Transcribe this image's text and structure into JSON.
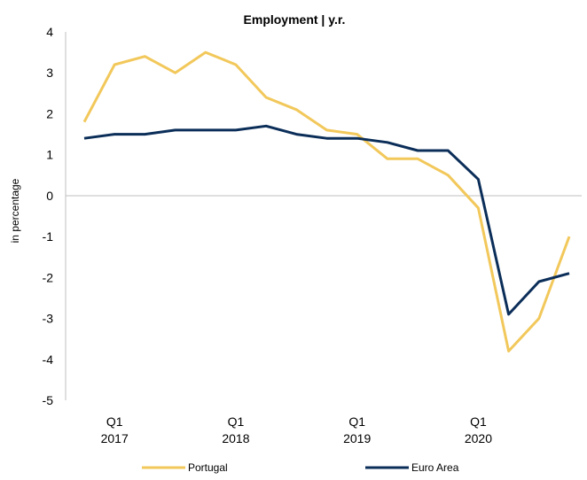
{
  "chart_data": {
    "type": "line",
    "title": "Employment | y.r.",
    "ylabel": "in percentage",
    "ylim": [
      -5,
      4
    ],
    "yticks": [
      4,
      3,
      2,
      1,
      0,
      -1,
      -2,
      -3,
      -4,
      -5
    ],
    "x_tick_labels": [
      {
        "q": "Q1",
        "year": "2017",
        "index": 1
      },
      {
        "q": "Q1",
        "year": "2018",
        "index": 5
      },
      {
        "q": "Q1",
        "year": "2019",
        "index": 9
      },
      {
        "q": "Q1",
        "year": "2020",
        "index": 13
      }
    ],
    "x": [
      "Q4 2016",
      "Q1 2017",
      "Q2 2017",
      "Q3 2017",
      "Q4 2017",
      "Q1 2018",
      "Q2 2018",
      "Q3 2018",
      "Q4 2018",
      "Q1 2019",
      "Q2 2019",
      "Q3 2019",
      "Q4 2019",
      "Q1 2020",
      "Q2 2020",
      "Q3 2020",
      "Q4 2020"
    ],
    "series": [
      {
        "name": "Portugal",
        "color": "#F2C85B",
        "values": [
          1.8,
          3.2,
          3.4,
          3.0,
          3.5,
          3.2,
          2.4,
          2.1,
          1.6,
          1.5,
          0.9,
          0.9,
          0.5,
          -0.3,
          -3.8,
          -3.0,
          -1.0
        ]
      },
      {
        "name": "Euro Area",
        "color": "#0B2E59",
        "values": [
          1.4,
          1.5,
          1.5,
          1.6,
          1.6,
          1.6,
          1.7,
          1.5,
          1.4,
          1.4,
          1.3,
          1.1,
          1.1,
          0.4,
          -2.9,
          -2.1,
          -1.9
        ]
      }
    ],
    "legend_position": "bottom",
    "grid": false
  }
}
